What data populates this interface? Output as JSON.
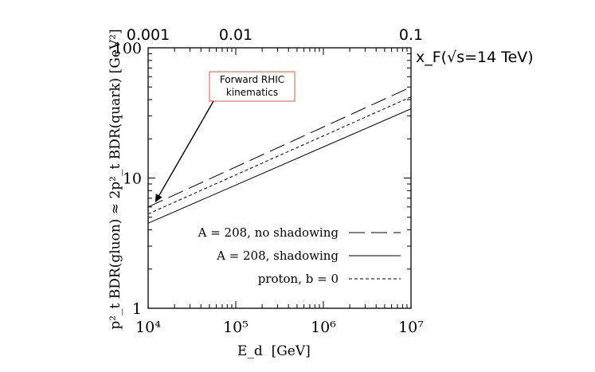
{
  "chart_data": {
    "type": "line",
    "x_scale": "log",
    "y_scale": "log",
    "xlim": [
      10000,
      10000000
    ],
    "ylim": [
      1,
      100
    ],
    "xlabel": "E_d  [GeV]",
    "ylabel": "p²_t BDR(gluon) ≈ 2p²_t BDR(quark) [GeV²]",
    "x_ticks": [
      10000,
      100000,
      1000000,
      10000000
    ],
    "x_tick_labels": [
      "10⁴",
      "10⁵",
      "10⁶",
      "10⁷"
    ],
    "y_ticks": [
      1,
      10,
      100
    ],
    "y_tick_labels": [
      "1",
      "10",
      "100"
    ],
    "top_axis": {
      "label": "x_F(√s=14 TeV)",
      "ticks": [
        0.001,
        0.01,
        0.1
      ],
      "tick_labels": [
        "0.001",
        "0.01",
        "0.1"
      ],
      "positions_E": [
        10000,
        100000,
        10000000
      ]
    },
    "grid": false,
    "legend_position": "bottom-right",
    "series": [
      {
        "name": "A = 208, no shadowing",
        "style": "long-dash",
        "x": [
          10000,
          10000000
        ],
        "y": [
          6.0,
          50.0
        ]
      },
      {
        "name": "A = 208, shadowing",
        "style": "solid",
        "x": [
          10000,
          10000000
        ],
        "y": [
          4.5,
          34.0
        ]
      },
      {
        "name": "proton, b = 0",
        "style": "short-dash",
        "x": [
          10000,
          10000000
        ],
        "y": [
          5.3,
          42.0
        ]
      }
    ],
    "annotation": {
      "text_line1": "Forward RHIC",
      "text_line2": "kinematics",
      "border_color": "#e8542f",
      "arrow_target": {
        "x": 12000,
        "y": 6.5
      }
    }
  }
}
